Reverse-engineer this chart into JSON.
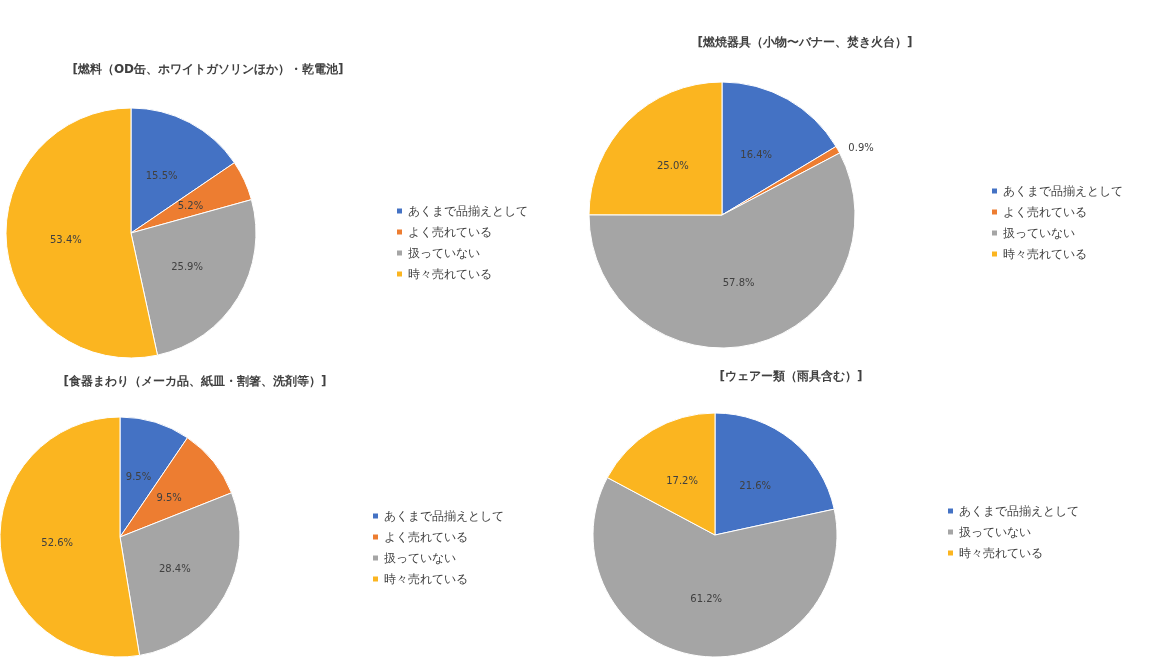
{
  "chart_data": [
    {
      "type": "pie",
      "title": "[燃料（OD缶、ホワイトガソリンほか）・乾電池]",
      "categories": [
        "あくまで品揃えとして",
        "よく売れている",
        "扱っていない",
        "時々売れている"
      ],
      "values": [
        15.5,
        5.2,
        25.9,
        53.4
      ],
      "value_labels": [
        "15.5%",
        "5.2%",
        "25.9%",
        "53.4%"
      ],
      "colors": [
        "#4472c4",
        "#ed7d31",
        "#a5a5a5",
        "#fbb520"
      ],
      "legend": "right"
    },
    {
      "type": "pie",
      "title": "[燃焼器具（小物〜バナー、焚き火台）]",
      "categories": [
        "あくまで品揃えとして",
        "よく売れている",
        "扱っていない",
        "時々売れている"
      ],
      "values": [
        16.4,
        0.9,
        57.8,
        25.0
      ],
      "value_labels": [
        "16.4%",
        "0.9%",
        "57.8%",
        "25.0%"
      ],
      "colors": [
        "#4472c4",
        "#ed7d31",
        "#a5a5a5",
        "#fbb520"
      ],
      "legend": "right"
    },
    {
      "type": "pie",
      "title": "[食器まわり（メーカ品、紙皿・割箸、洗剤等）]",
      "categories": [
        "あくまで品揃えとして",
        "よく売れている",
        "扱っていない",
        "時々売れている"
      ],
      "values": [
        9.5,
        9.5,
        28.4,
        52.6
      ],
      "value_labels": [
        "9.5%",
        "9.5%",
        "28.4%",
        "52.6%"
      ],
      "colors": [
        "#4472c4",
        "#ed7d31",
        "#a5a5a5",
        "#fbb520"
      ],
      "legend": "right"
    },
    {
      "type": "pie",
      "title": "[ウェアー類（雨具含む）]",
      "categories": [
        "あくまで品揃えとして",
        "扱っていない",
        "時々売れている"
      ],
      "values": [
        21.6,
        61.2,
        17.2
      ],
      "value_labels": [
        "21.6%",
        "61.2%",
        "17.2%"
      ],
      "colors": [
        "#4472c4",
        "#a5a5a5",
        "#fbb520"
      ],
      "legend": "right"
    }
  ]
}
